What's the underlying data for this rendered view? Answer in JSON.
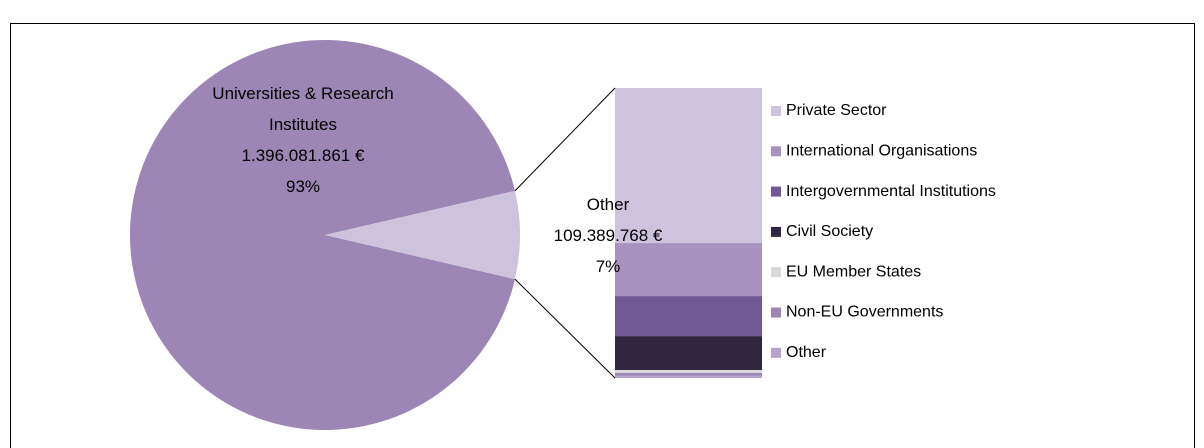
{
  "chart_data": {
    "type": "pie-of-bar",
    "pie": {
      "categories": [
        "Universities & Research Institutes",
        "Other"
      ],
      "colors": [
        "#9b86b5",
        "#cdc3dc"
      ],
      "values": [
        1396081861,
        109389768
      ],
      "value_labels": [
        "1.396.081.861 €",
        "109.389.768 €"
      ],
      "percents": [
        93,
        7
      ],
      "percent_labels": [
        "93%",
        "7%"
      ]
    },
    "bar": {
      "categories": [
        "Private Sector",
        "International Organisations",
        "Intergovernmental Institutions",
        "Civil Society",
        "EU Member States",
        "Non-EU Governments",
        "Other"
      ],
      "colors": [
        "#cdc3dc",
        "#a893c0",
        "#6f5893",
        "#302640",
        "#d9d9d9",
        "#9b86b5",
        "#b5a3cc"
      ],
      "values": [
        58500000,
        20000000,
        15100000,
        12800000,
        1100000,
        1100000,
        800000
      ]
    }
  }
}
